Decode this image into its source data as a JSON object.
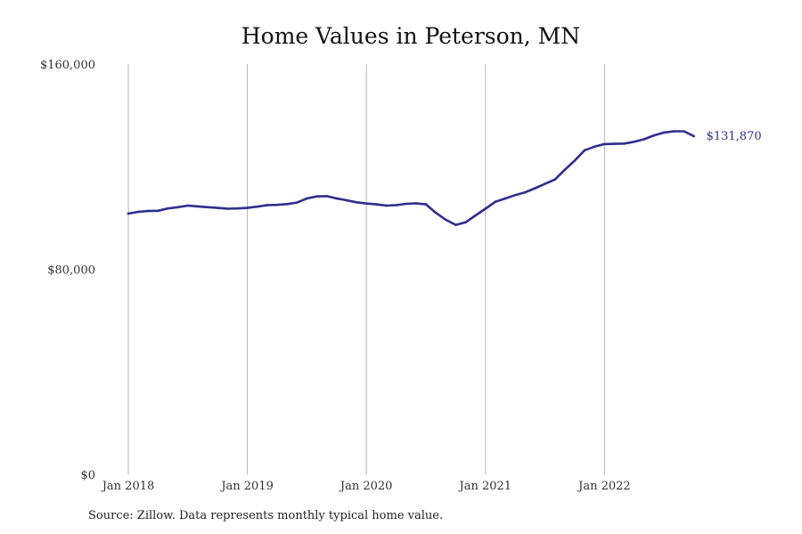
{
  "chart_data": {
    "type": "line",
    "title": "Home Values in Peterson, MN",
    "source": "Source: Zillow. Data represents monthly typical home value.",
    "xlabel": "",
    "ylabel": "",
    "ylim": [
      0,
      160000
    ],
    "y_ticks": [
      {
        "value": 0,
        "label": "$0"
      },
      {
        "value": 80000,
        "label": "$80,000"
      },
      {
        "value": 160000,
        "label": "$160,000"
      }
    ],
    "x_ticks": [
      {
        "value": "2018-01",
        "label": "Jan 2018"
      },
      {
        "value": "2019-01",
        "label": "Jan 2019"
      },
      {
        "value": "2020-01",
        "label": "Jan 2020"
      },
      {
        "value": "2021-01",
        "label": "Jan 2021"
      },
      {
        "value": "2022-01",
        "label": "Jan 2022"
      }
    ],
    "grid": "vertical",
    "line_color": "#2e2e8f",
    "end_label": "$131,870",
    "series": [
      {
        "x": [
          "2018-01",
          "2018-02",
          "2018-03",
          "2018-04",
          "2018-05",
          "2018-06",
          "2018-07",
          "2018-08",
          "2018-09",
          "2018-10",
          "2018-11",
          "2018-12",
          "2019-01",
          "2019-02",
          "2019-03",
          "2019-04",
          "2019-05",
          "2019-06",
          "2019-07",
          "2019-08",
          "2019-09",
          "2019-10",
          "2019-11",
          "2019-12",
          "2020-01",
          "2020-02",
          "2020-03",
          "2020-04",
          "2020-05",
          "2020-06",
          "2020-07",
          "2020-08",
          "2020-09",
          "2020-10",
          "2020-11",
          "2020-12",
          "2021-01",
          "2021-02",
          "2021-03",
          "2021-04",
          "2021-05",
          "2021-06",
          "2021-07",
          "2021-08",
          "2021-09",
          "2021-10",
          "2021-11",
          "2021-12",
          "2022-01",
          "2022-02",
          "2022-03",
          "2022-04",
          "2022-05",
          "2022-06",
          "2022-07",
          "2022-08",
          "2022-09",
          "2022-10"
        ],
        "values": [
          101700,
          102400,
          102700,
          102800,
          103700,
          104200,
          104800,
          104500,
          104200,
          103900,
          103600,
          103700,
          103900,
          104400,
          105000,
          105100,
          105400,
          106000,
          107600,
          108400,
          108500,
          107600,
          106900,
          106100,
          105600,
          105300,
          104800,
          105000,
          105500,
          105700,
          105300,
          102000,
          99300,
          97300,
          98300,
          101000,
          103600,
          106300,
          107600,
          108900,
          110000,
          111600,
          113300,
          115000,
          118800,
          122400,
          126400,
          127800,
          128800,
          128900,
          129000,
          129700,
          130700,
          132200,
          133300,
          133800,
          133800,
          131870
        ]
      }
    ]
  }
}
